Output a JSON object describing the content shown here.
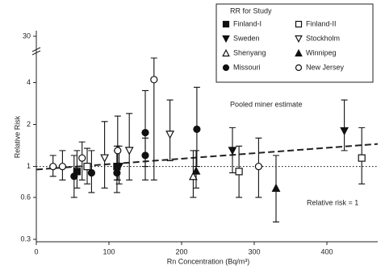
{
  "chart_data": {
    "type": "scatter",
    "x_label": "Rn Concentration (Bq/m³)",
    "y_label": "Relative Risk",
    "legend_title": "RR for Study",
    "log_y": true,
    "xlim": [
      0,
      470
    ],
    "xticks": [
      0,
      100,
      200,
      300,
      400
    ],
    "ylim": [
      0.3,
      30
    ],
    "ybreak": [
      6,
      25
    ],
    "yticks": [
      0.3,
      0.6,
      1,
      2,
      4,
      30
    ],
    "series": [
      {
        "name": "Finland-I",
        "marker": "square-filled",
        "color": "#111111",
        "x": [
          56,
          111
        ],
        "values": [
          0.92,
          1.0
        ],
        "lower": [
          0.7,
          0.8
        ],
        "upper": [
          1.3,
          1.4
        ]
      },
      {
        "name": "Finland-II",
        "marker": "square-open",
        "color": "#111111",
        "x": [
          70,
          279,
          448
        ],
        "values": [
          1.0,
          0.92,
          1.15
        ],
        "lower": [
          0.75,
          0.6,
          0.75
        ],
        "upper": [
          1.35,
          1.4,
          1.9
        ]
      },
      {
        "name": "Sweden",
        "marker": "down-filled",
        "color": "#111111",
        "x": [
          114,
          270,
          424
        ],
        "values": [
          1.0,
          1.3,
          1.8
        ],
        "lower": [
          0.75,
          0.9,
          1.3
        ],
        "upper": [
          1.4,
          1.9,
          3.0
        ]
      },
      {
        "name": "Stockholm",
        "marker": "down-open",
        "color": "#111111",
        "x": [
          94,
          128,
          184
        ],
        "values": [
          1.15,
          1.3,
          1.7
        ],
        "lower": [
          0.7,
          0.8,
          1.1
        ],
        "upper": [
          2.1,
          2.4,
          3.0
        ]
      },
      {
        "name": "Shenyang",
        "marker": "up-open",
        "color": "#111111",
        "x": [
          216
        ],
        "values": [
          0.85
        ],
        "lower": [
          0.6
        ],
        "upper": [
          1.3
        ]
      },
      {
        "name": "Winnipeg",
        "marker": "up-filled",
        "color": "#111111",
        "x": [
          220,
          330
        ],
        "values": [
          0.93,
          0.7
        ],
        "lower": [
          0.7,
          0.4
        ],
        "upper": [
          1.3,
          1.2
        ]
      },
      {
        "name": "Missouri",
        "marker": "circle-filled",
        "color": "#111111",
        "x": [
          52,
          76,
          111,
          150,
          150,
          221
        ],
        "values": [
          0.85,
          0.9,
          0.9,
          1.2,
          1.75,
          1.85
        ],
        "lower": [
          0.6,
          0.65,
          0.65,
          0.8,
          1.0,
          1.0
        ],
        "upper": [
          1.2,
          1.3,
          1.3,
          1.6,
          3.5,
          3.7
        ]
      },
      {
        "name": "New Jersey",
        "marker": "circle-open",
        "color": "#111111",
        "x": [
          23,
          36,
          63,
          112,
          162,
          306
        ],
        "values": [
          1.0,
          1.0,
          1.15,
          1.3,
          4.2,
          1.0
        ],
        "lower": [
          0.85,
          0.8,
          0.8,
          0.8,
          0.8,
          0.6
        ],
        "upper": [
          1.2,
          1.3,
          1.5,
          2.3,
          6,
          1.6
        ]
      }
    ],
    "lines": [
      {
        "name": "Pooled miner estimate",
        "style": "dashed",
        "x": [
          0,
          470
        ],
        "values": [
          0.95,
          1.45
        ]
      },
      {
        "name": "Relative risk = 1",
        "style": "dotted",
        "x": [
          0,
          470
        ],
        "values": [
          1,
          1
        ]
      }
    ]
  }
}
